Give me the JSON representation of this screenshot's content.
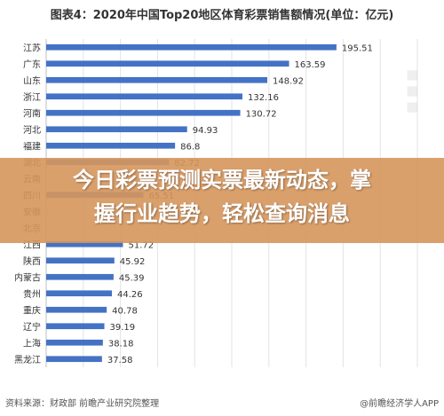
{
  "title": "图表4：2020年中国Top20地区体育彩票销售额情况(单位：亿元)",
  "footer": {
    "source": "资料来源：财政部 前瞻产业研究院整理",
    "brand": "@前瞻经济学人APP"
  },
  "banner": {
    "line1": "今日彩票预测实票最新动态，掌",
    "line2": "握行业趋势，轻松查询消息"
  },
  "colors": {
    "bar": "#4472C4",
    "banner": "#D6965C"
  },
  "chart_data": {
    "type": "bar",
    "orientation": "horizontal",
    "categories": [
      "江苏",
      "广东",
      "山东",
      "浙江",
      "河南",
      "河北",
      "福建",
      "湖北",
      "云南",
      "四川",
      "安徽",
      "北京",
      "江西",
      "陕西",
      "内蒙古",
      "贵州",
      "重庆",
      "辽宁",
      "上海",
      "黑龙江"
    ],
    "values": [
      195.51,
      163.59,
      148.92,
      132.16,
      130.72,
      94.93,
      86.8,
      82.72,
      null,
      65.51,
      null,
      null,
      51.72,
      45.92,
      45.39,
      44.26,
      40.78,
      39.19,
      38.18,
      37.58
    ],
    "value_labels": [
      "195.51",
      "163.59",
      "148.92",
      "132.16",
      "130.72",
      "94.93",
      "86.8",
      "82.72",
      "",
      "65.51",
      "",
      "",
      "51.72",
      "45.92",
      "45.39",
      "44.26",
      "40.78",
      "39.19",
      "38.18",
      "37.58"
    ],
    "xlim": [
      0,
      250
    ],
    "grid": true,
    "legend": "none"
  }
}
